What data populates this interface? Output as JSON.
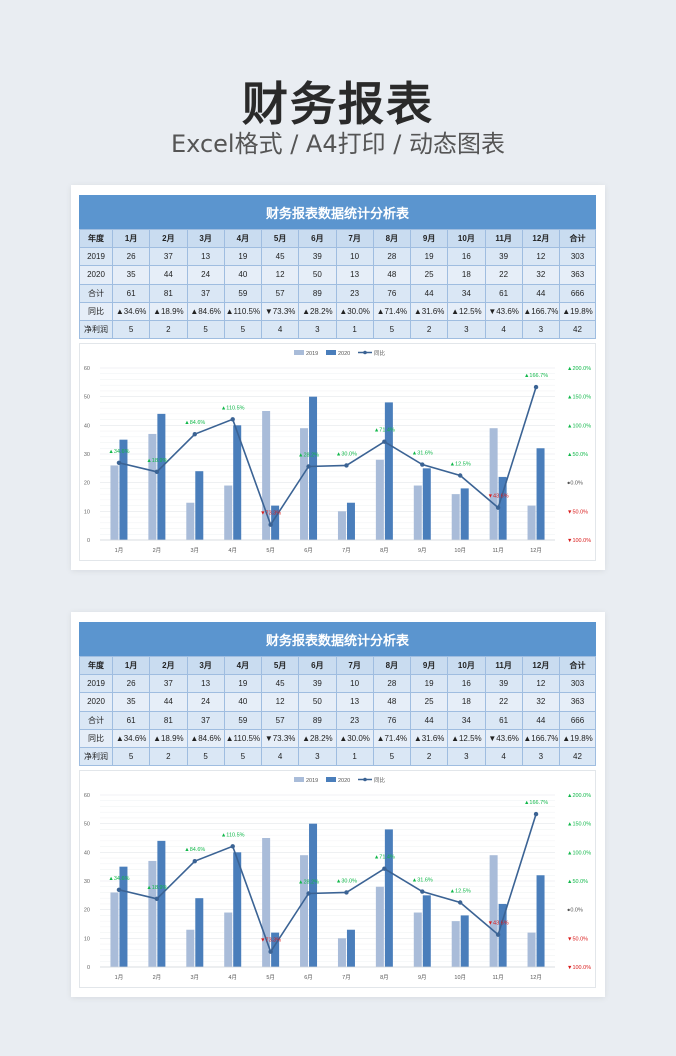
{
  "header": {
    "title": "财务报表",
    "subtitle": "Excel格式 / A4打印 / 动态图表"
  },
  "sheet": {
    "title": "财务报表数据统计分析表",
    "columns": [
      "年度",
      "1月",
      "2月",
      "3月",
      "4月",
      "5月",
      "6月",
      "7月",
      "8月",
      "9月",
      "10月",
      "11月",
      "12月",
      "合计"
    ],
    "rows": [
      {
        "label": "2019",
        "values": [
          "26",
          "37",
          "13",
          "19",
          "45",
          "39",
          "10",
          "28",
          "19",
          "16",
          "39",
          "12"
        ],
        "total": "303"
      },
      {
        "label": "2020",
        "values": [
          "35",
          "44",
          "24",
          "40",
          "12",
          "50",
          "13",
          "48",
          "25",
          "18",
          "22",
          "32"
        ],
        "total": "363"
      },
      {
        "label": "合计",
        "values": [
          "61",
          "81",
          "37",
          "59",
          "57",
          "89",
          "23",
          "76",
          "44",
          "34",
          "61",
          "44"
        ],
        "total": "666"
      },
      {
        "label": "同比",
        "values": [
          "▲34.6%",
          "▲18.9%",
          "▲84.6%",
          "▲110.5%",
          "▼73.3%",
          "▲28.2%",
          "▲30.0%",
          "▲71.4%",
          "▲31.6%",
          "▲12.5%",
          "▼43.6%",
          "▲166.7%"
        ],
        "total": "▲19.8%"
      },
      {
        "label": "净利润",
        "values": [
          "5",
          "2",
          "5",
          "5",
          "4",
          "3",
          "1",
          "5",
          "2",
          "3",
          "4",
          "3"
        ],
        "total": "42"
      }
    ]
  },
  "colors": {
    "s2019": "#a9bcd9",
    "s2020": "#4a7ebb",
    "line": "#3b6394",
    "up": "#11b84a",
    "down": "#d91a1a"
  },
  "chart_data": {
    "type": "bar",
    "categories": [
      "1月",
      "2月",
      "3月",
      "4月",
      "5月",
      "6月",
      "7月",
      "8月",
      "9月",
      "10月",
      "11月",
      "12月"
    ],
    "series": [
      {
        "name": "2019",
        "type": "bar",
        "axis": "left",
        "values": [
          26,
          37,
          13,
          19,
          45,
          39,
          10,
          28,
          19,
          16,
          39,
          12
        ]
      },
      {
        "name": "2020",
        "type": "bar",
        "axis": "left",
        "values": [
          35,
          44,
          24,
          40,
          12,
          50,
          13,
          48,
          25,
          18,
          22,
          32
        ]
      },
      {
        "name": "同比",
        "type": "line",
        "axis": "right",
        "values": [
          34.6,
          18.9,
          84.6,
          110.5,
          -73.3,
          28.2,
          30.0,
          71.4,
          31.6,
          12.5,
          -43.6,
          166.7
        ],
        "labels": [
          "▲34.6%",
          "▲18.9%",
          "▲84.6%",
          "▲110.5%",
          "▼73.3%",
          "▲28.2%",
          "▲30.0%",
          "▲71.4%",
          "▲31.6%",
          "▲12.5%",
          "▼43.6%",
          "▲166.7%"
        ]
      }
    ],
    "ylim": [
      0,
      60
    ],
    "yticks": [
      "0",
      "10",
      "20",
      "30",
      "40",
      "50",
      "60"
    ],
    "y2lim": [
      -100,
      200
    ],
    "y2ticks": [
      {
        "label": "▼100.0%",
        "dir": "down"
      },
      {
        "label": "▼50.0%",
        "dir": "down"
      },
      {
        "label": "●0.0%",
        "dir": "zero"
      },
      {
        "label": "▲50.0%",
        "dir": "up"
      },
      {
        "label": "▲100.0%",
        "dir": "up"
      },
      {
        "label": "▲150.0%",
        "dir": "up"
      },
      {
        "label": "▲200.0%",
        "dir": "up"
      }
    ],
    "grid": true,
    "legend": "top-center"
  }
}
